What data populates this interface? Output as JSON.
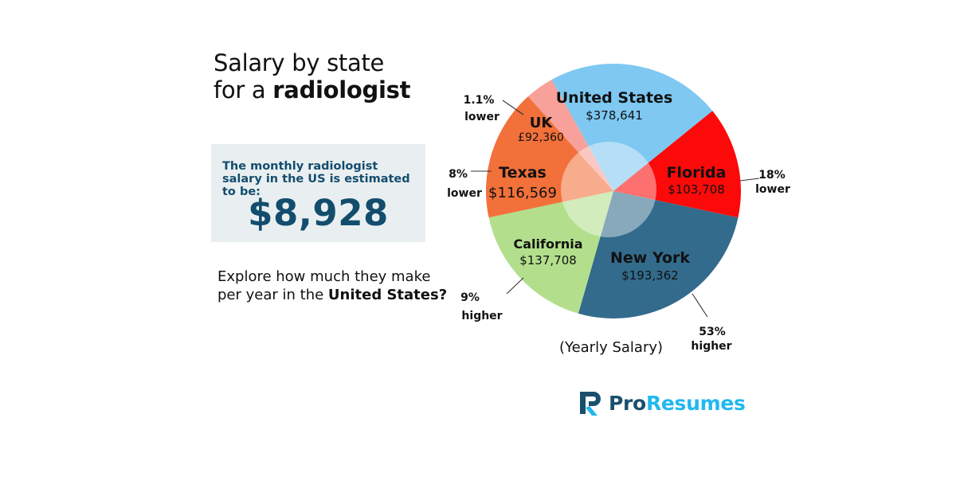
{
  "headline": {
    "line1": "Salary by state",
    "line2_prefix": "for a ",
    "line2_bold": "radiologist"
  },
  "monthly_card": {
    "caption": "The monthly radiologist salary in the US is estimated to be:",
    "amount": "$8,928"
  },
  "explore": {
    "prefix": "Explore how much they make per year in the ",
    "bold": "United States?"
  },
  "brand": {
    "pro": "Pro",
    "resumes": "Resumes",
    "colors": {
      "dark": "#1a4f6e",
      "light": "#22b8f0"
    }
  },
  "chart_data": {
    "type": "pie",
    "title": "(Yearly Salary)",
    "currency_note": "Slices sized by yearly salary amounts shown",
    "slices": [
      {
        "label": "United States",
        "value_label": "$378,641",
        "value": 378641,
        "color": "#7ec8f2",
        "comparison": ""
      },
      {
        "label": "Florida",
        "value_label": "$103,708",
        "value": 103708,
        "color": "#fc0a0a",
        "comparison": "18% lower"
      },
      {
        "label": "New York",
        "value_label": "$193,362",
        "value": 193362,
        "color": "#336b8c",
        "comparison": "53% higher"
      },
      {
        "label": "California",
        "value_label": "$137,708",
        "value": 137708,
        "color": "#b3df8c",
        "comparison": "9% higher"
      },
      {
        "label": "Texas",
        "value_label": "$116,569",
        "value": 116569,
        "color": "#f2703a",
        "comparison": "8% lower"
      },
      {
        "label": "UK",
        "value_label": "£92,360",
        "value": 92360,
        "color": "#f7a19a",
        "comparison": "1.1% lower"
      }
    ]
  }
}
